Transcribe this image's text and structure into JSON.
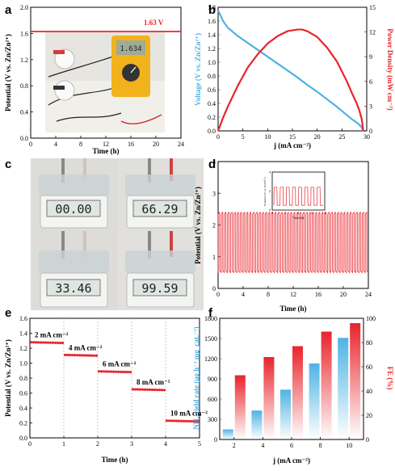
{
  "panel_labels": [
    "a",
    "b",
    "c",
    "d",
    "e",
    "f"
  ],
  "photo_c_displays": [
    "00.00",
    "66.29",
    "33.46",
    "99.59"
  ],
  "chart_data": [
    {
      "panel": "a",
      "type": "line",
      "xlabel": "Time (h)",
      "ylabel": "Potential (V vs. Zn/Zn²⁺)",
      "xlim": [
        0,
        24
      ],
      "ylim": [
        0.0,
        2.0
      ],
      "xticks": [
        "0",
        "4",
        "8",
        "12",
        "16",
        "20",
        "24"
      ],
      "yticks": [
        "0.0",
        "0.4",
        "0.8",
        "1.2",
        "1.6",
        "2.0"
      ],
      "annotation": "1.63 V",
      "meter_reading": "1.634",
      "x": [
        0,
        24
      ],
      "y": [
        1.63,
        1.63
      ],
      "color": "#e8242b"
    },
    {
      "panel": "b",
      "type": "line",
      "xlabel": "j (mA cm⁻²)",
      "ylabel": "Voltage (V vs. Zn/Zn²⁺)",
      "y2label": "Power Density (mW cm⁻²)",
      "xlim": [
        0,
        30
      ],
      "ylim": [
        0.0,
        1.8
      ],
      "y2lim": [
        0,
        15
      ],
      "xticks": [
        "0",
        "5",
        "10",
        "15",
        "20",
        "25",
        "30"
      ],
      "yticks": [
        "0.0",
        "0.2",
        "0.4",
        "0.6",
        "0.8",
        "1.0",
        "1.2",
        "1.4",
        "1.6",
        "1.8"
      ],
      "y2ticks": [
        "0",
        "3",
        "6",
        "9",
        "12",
        "15"
      ],
      "series": [
        {
          "axis": "left",
          "color": "#4fb3e3",
          "x": [
            0,
            0.5,
            1,
            2,
            3,
            4,
            5,
            6,
            8,
            10,
            12,
            14,
            16,
            18,
            20,
            22,
            24,
            26,
            27,
            28,
            28.5,
            29,
            29.3
          ],
          "y": [
            1.75,
            1.68,
            1.6,
            1.5,
            1.44,
            1.38,
            1.33,
            1.28,
            1.18,
            1.08,
            0.98,
            0.88,
            0.78,
            0.67,
            0.57,
            0.46,
            0.35,
            0.23,
            0.17,
            0.12,
            0.09,
            0.05,
            0.0
          ]
        },
        {
          "axis": "right",
          "color": "#e8242b",
          "x": [
            0,
            1,
            2,
            4,
            6,
            8,
            10,
            12,
            14,
            16,
            17,
            18,
            20,
            22,
            24,
            26,
            27,
            28,
            28.5,
            29,
            29.3
          ],
          "y": [
            0,
            1.6,
            3.0,
            5.5,
            7.7,
            9.3,
            10.6,
            11.5,
            12.1,
            12.3,
            12.3,
            12.1,
            11.4,
            10.1,
            8.4,
            6.0,
            4.6,
            3.3,
            2.5,
            1.4,
            0
          ]
        }
      ]
    },
    {
      "panel": "d",
      "type": "line",
      "xlabel": "Time (h)",
      "ylabel": "Potential (V vs. Zn/Zn²⁺)",
      "xlim": [
        0,
        24
      ],
      "ylim": [
        0,
        4
      ],
      "xticks": [
        "0",
        "4",
        "8",
        "12",
        "16",
        "20",
        "24"
      ],
      "yticks": [
        "0",
        "1",
        "2",
        "3",
        "4"
      ],
      "color": "#e8242b",
      "cycles": 48,
      "charge_potential": 2.4,
      "discharge_potential": 0.5,
      "inset": {
        "xlabel": "Time (h)",
        "ylabel": "Potential (V vs. Zn/Zn²⁺)",
        "xticks": [
          "0",
          "1",
          "2",
          "3",
          "4"
        ],
        "yticks": [
          "0",
          "2",
          "4"
        ],
        "xlim": [
          0,
          4
        ],
        "ylim": [
          0,
          4
        ],
        "cycles": 8,
        "charge_potential": 2.4,
        "discharge_potential": 0.5
      }
    },
    {
      "panel": "e",
      "type": "scatter",
      "xlabel": "Time (h)",
      "ylabel": "Potential (V vs. Zn/Zn²⁺)",
      "xlim": [
        0,
        5
      ],
      "ylim": [
        0.0,
        1.6
      ],
      "xticks": [
        "0",
        "1",
        "2",
        "3",
        "4",
        "5"
      ],
      "yticks": [
        "0.0",
        "0.2",
        "0.4",
        "0.6",
        "0.8",
        "1.0",
        "1.2",
        "1.4",
        "1.6"
      ],
      "color": "#e8242b",
      "steps": [
        {
          "label": "2 mA cm⁻²",
          "x0": 0,
          "x1": 1,
          "y0": 1.28,
          "y1": 1.27
        },
        {
          "label": "4 mA cm⁻²",
          "x0": 1,
          "x1": 2,
          "y0": 1.11,
          "y1": 1.1
        },
        {
          "label": "6 mA cm⁻²",
          "x0": 2,
          "x1": 3,
          "y0": 0.89,
          "y1": 0.88
        },
        {
          "label": "8 mA cm⁻²",
          "x0": 3,
          "x1": 4,
          "y0": 0.65,
          "y1": 0.64
        },
        {
          "label": "10 mA cm⁻²",
          "x0": 4,
          "x1": 5,
          "y0": 0.23,
          "y1": 0.22
        }
      ]
    },
    {
      "panel": "f",
      "type": "bar",
      "xlabel": "j (mA cm⁻²)",
      "ylabel": "NH₃ yield rate (μg h⁻¹ mg_cat.⁻¹)",
      "y2label": "FE (%)",
      "categories": [
        "2",
        "4",
        "6",
        "8",
        "10"
      ],
      "ylim": [
        0,
        1800
      ],
      "y2lim": [
        0,
        100
      ],
      "yticks": [
        "0",
        "300",
        "600",
        "900",
        "1200",
        "1500",
        "1800"
      ],
      "y2ticks": [
        "0",
        "20",
        "40",
        "60",
        "80",
        "100"
      ],
      "series": [
        {
          "axis": "left",
          "color": "#4fb3e3",
          "values": [
            150,
            430,
            740,
            1130,
            1510
          ]
        },
        {
          "axis": "right",
          "color": "#e8242b",
          "values": [
            53,
            68,
            77,
            89,
            96
          ]
        }
      ]
    }
  ]
}
